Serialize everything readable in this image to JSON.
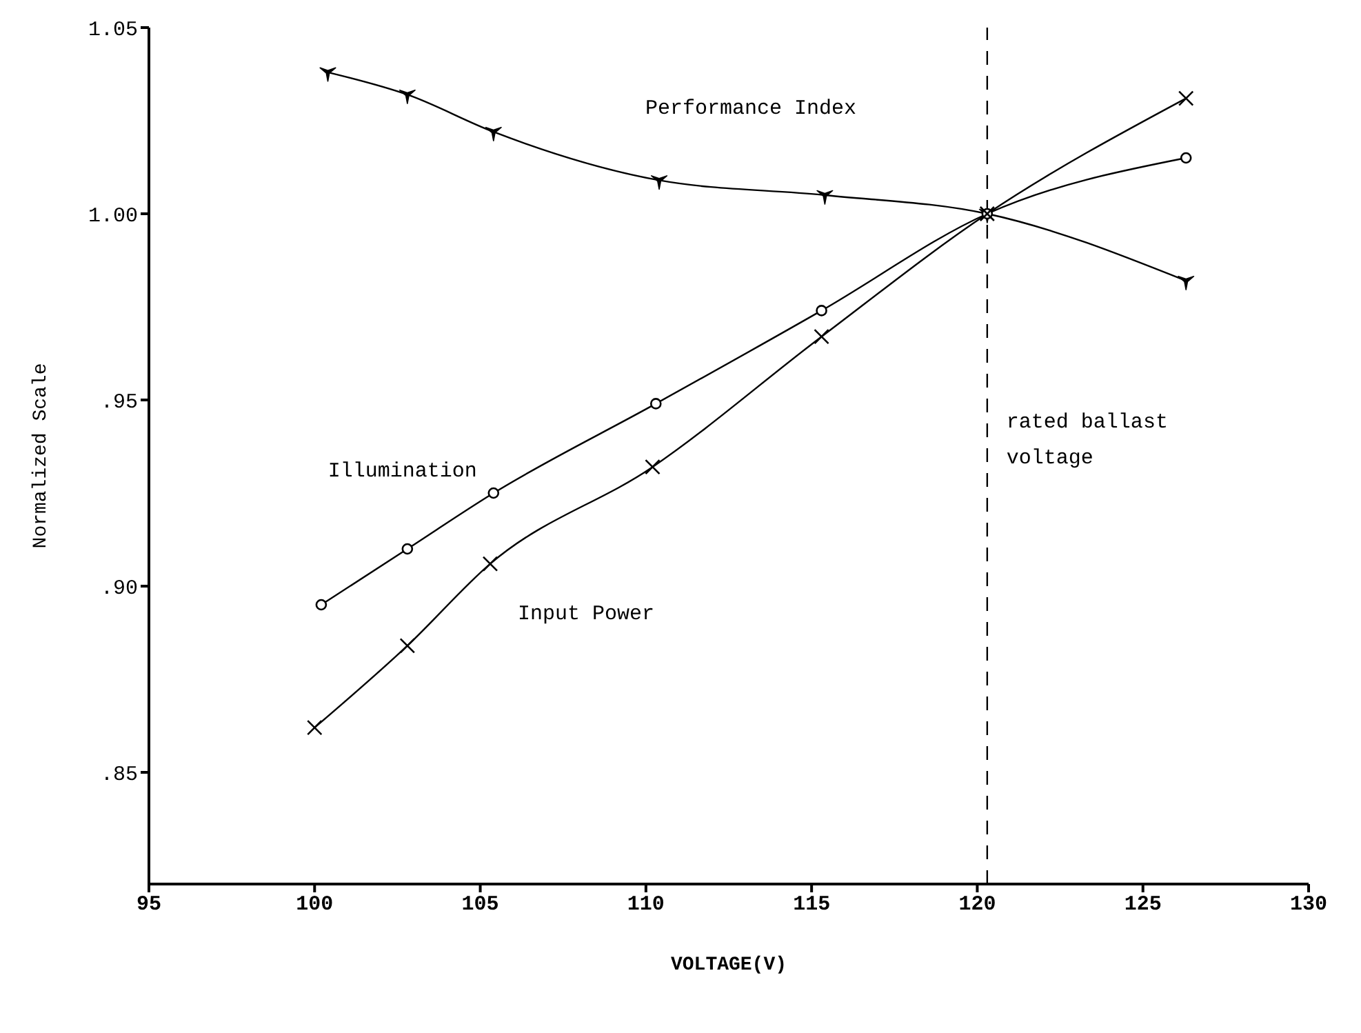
{
  "chart_data": {
    "type": "line",
    "xlabel": "VOLTAGE(V)",
    "ylabel": "Normalized Scale",
    "xlim": [
      95,
      130
    ],
    "xticks": [
      95,
      100,
      105,
      110,
      115,
      120,
      125,
      130
    ],
    "ylim": [
      0.82,
      1.05
    ],
    "yticks": [
      {
        "value": 0.85,
        "label": ".85"
      },
      {
        "value": 0.9,
        "label": ".90"
      },
      {
        "value": 0.95,
        "label": ".95"
      },
      {
        "value": 1.0,
        "label": "1.00"
      },
      {
        "value": 1.05,
        "label": "1.05"
      }
    ],
    "series": [
      {
        "name": "Performance Index",
        "color": "#000000",
        "marker": "star",
        "x": [
          100.4,
          102.8,
          105.4,
          110.4,
          115.4,
          120.3,
          126.3
        ],
        "values": [
          1.038,
          1.032,
          1.022,
          1.009,
          1.005,
          1.0,
          0.982
        ]
      },
      {
        "name": "Illumination",
        "color": "#000000",
        "marker": "circle",
        "x": [
          100.2,
          102.8,
          105.4,
          110.3,
          115.3,
          120.3,
          126.3
        ],
        "values": [
          0.895,
          0.91,
          0.925,
          0.949,
          0.974,
          1.0,
          1.015
        ]
      },
      {
        "name": "Input Power",
        "color": "#000000",
        "marker": "cross",
        "x": [
          100,
          102.8,
          105.3,
          110.2,
          115.3,
          120.3,
          126.3
        ],
        "values": [
          0.862,
          0.884,
          0.906,
          0.932,
          0.967,
          1.0,
          1.031
        ]
      }
    ],
    "ref_lines": [
      {
        "axis": "x",
        "value": 120.3,
        "label": "rated ballast voltage",
        "line_style": "dashed",
        "color": "#000000"
      }
    ]
  }
}
